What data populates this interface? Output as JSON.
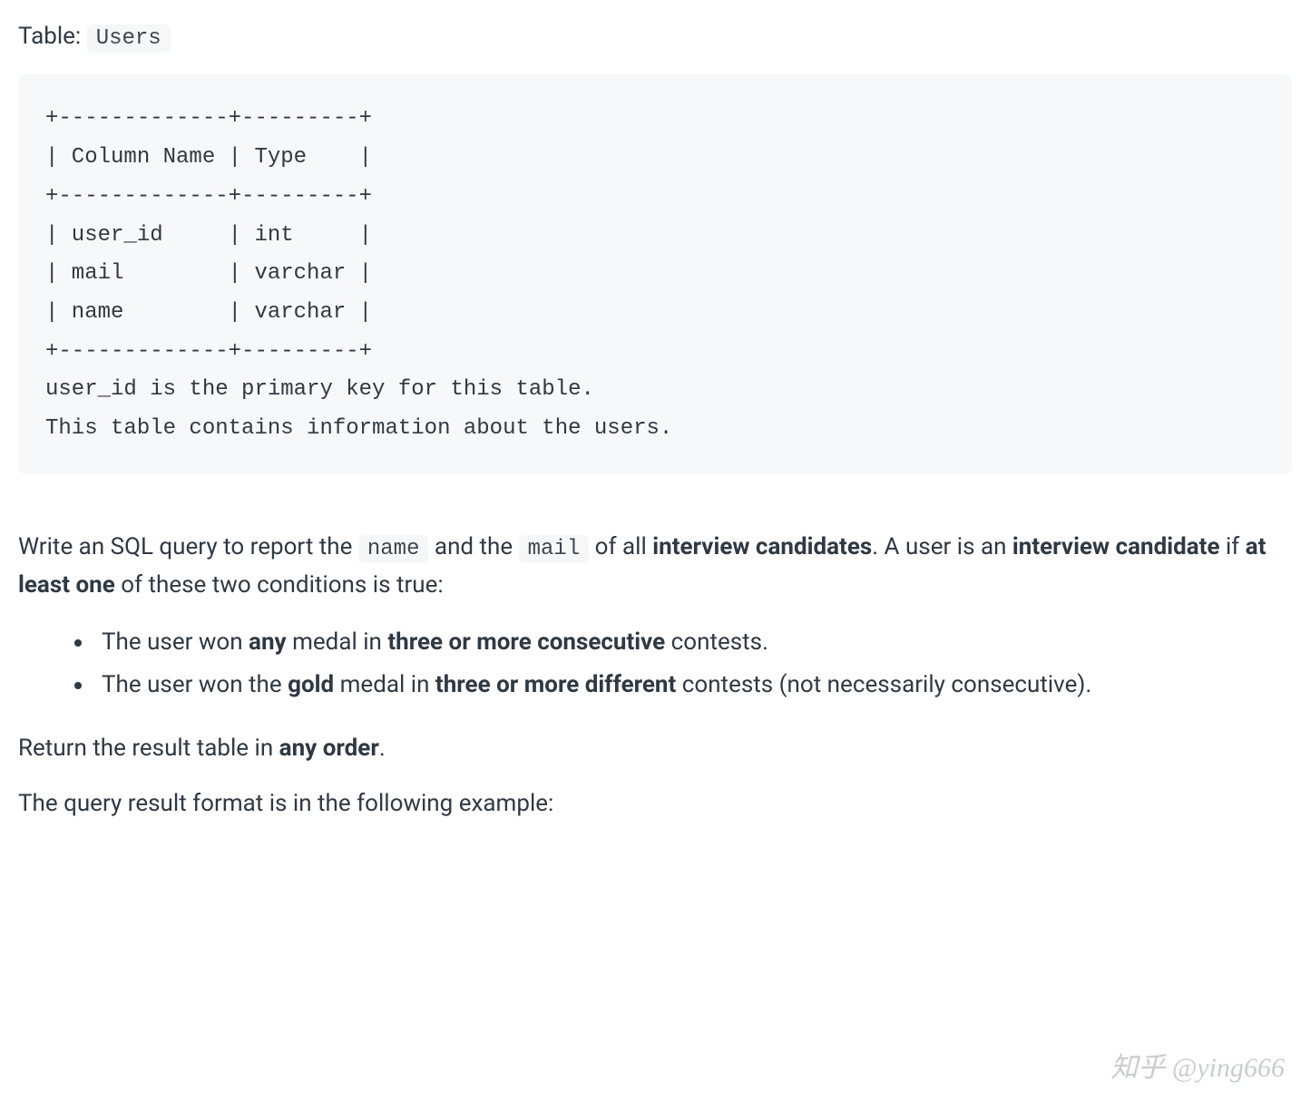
{
  "header": {
    "table_label": "Table: ",
    "table_name": "Users"
  },
  "schema_block": "+-------------+---------+\n| Column Name | Type    |\n+-------------+---------+\n| user_id     | int     |\n| mail        | varchar |\n| name        | varchar |\n+-------------+---------+\nuser_id is the primary key for this table.\nThis table contains information about the users.",
  "intro": {
    "seg1": "Write an SQL query to report the ",
    "code1": "name",
    "seg2": " and the ",
    "code2": "mail",
    "seg3": " of all ",
    "bold1": "interview candidates",
    "seg4": ". A user is an ",
    "bold2": "interview candidate",
    "seg5": " if ",
    "bold3": "at least one",
    "seg6": " of these two conditions is true:"
  },
  "bullets": [
    {
      "s1": "The user won ",
      "b1": "any",
      "s2": " medal in ",
      "b2": "three or more consecutive",
      "s3": " contests."
    },
    {
      "s1": "The user won the ",
      "b1": "gold",
      "s2": " medal in ",
      "b2": "three or more different",
      "s3": " contests (not necessarily consecutive)."
    }
  ],
  "return_line": {
    "s1": "Return the result table in ",
    "b1": "any order",
    "s2": "."
  },
  "footer_line": "The query result format is in the following example:",
  "watermark": "知乎 @ying666",
  "colors": {
    "background": "#ffffff",
    "text": "#2f3943",
    "code_bg": "#f6f8fa",
    "inline_code_bg": "#f5f7f9",
    "watermark": "#c9cccf"
  },
  "typography": {
    "body_fontsize": 26,
    "code_fontsize": 24,
    "watermark_fontsize": 30
  }
}
